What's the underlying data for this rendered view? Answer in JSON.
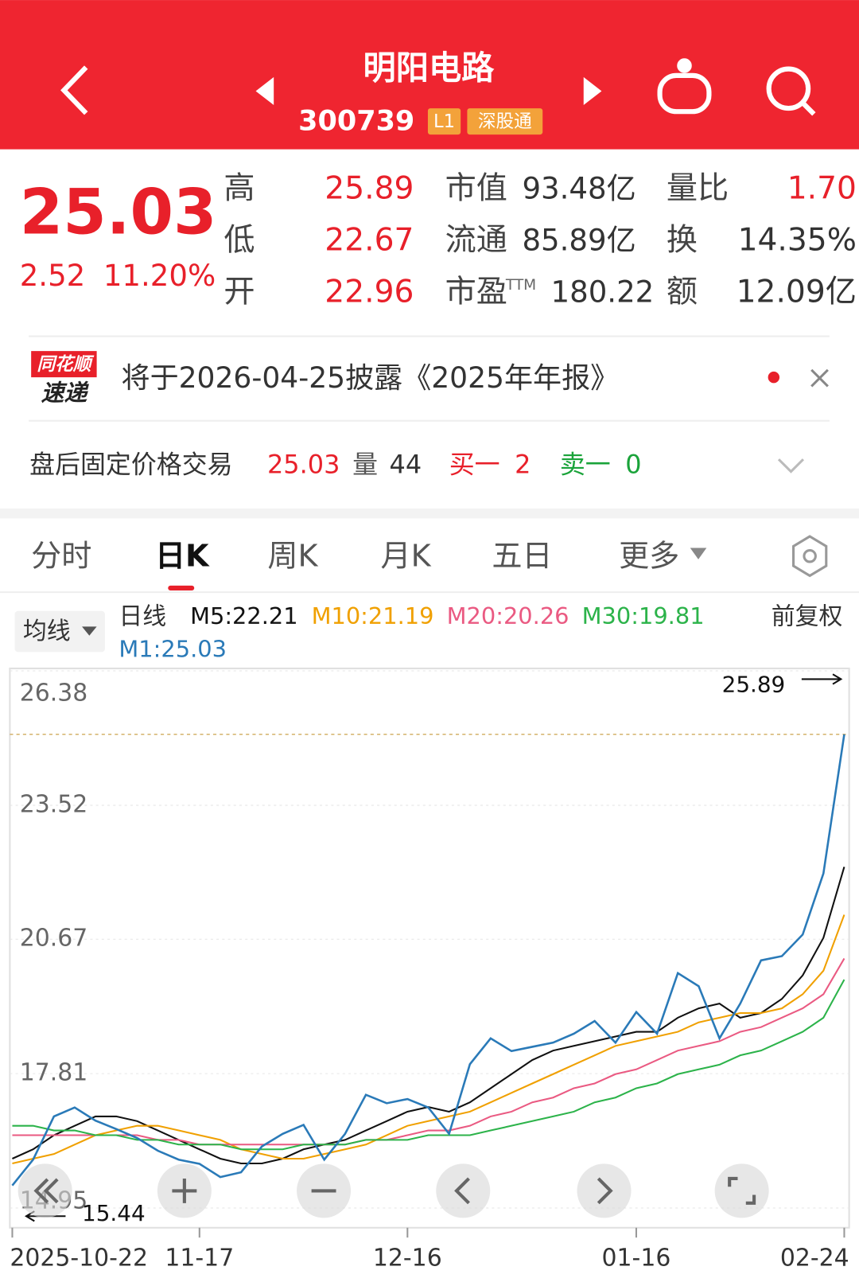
{
  "header": {
    "title": "明阳电路",
    "code": "300739",
    "badges": [
      "L1",
      "深股通"
    ]
  },
  "quote": {
    "price": "25.03",
    "change": "2.52",
    "change_pct": "11.20%",
    "stats": [
      [
        {
          "label": "高",
          "value": "25.89"
        },
        {
          "label": "市值",
          "value": "93.48亿"
        },
        {
          "label": "量比",
          "value": "1.70"
        }
      ],
      [
        {
          "label": "低",
          "value": "22.67"
        },
        {
          "label": "流通",
          "value": "85.89亿"
        },
        {
          "label": "换",
          "value": "14.35%"
        }
      ],
      [
        {
          "label": "开",
          "value": "22.96"
        },
        {
          "label": "市盈",
          "sup": "TTM",
          "value": "180.22"
        },
        {
          "label": "额",
          "value": "12.09亿"
        }
      ]
    ]
  },
  "notice": {
    "brand_top": "同花顺",
    "brand_bottom": "速递",
    "text": "将于2026-04-25披露《2025年年报》"
  },
  "after_hours": {
    "label": "盘后固定价格交易",
    "price": "25.03",
    "vol_label": "量",
    "vol": "44",
    "buy_label": "买一",
    "buy": "2",
    "sell_label": "卖一",
    "sell": "0"
  },
  "tabs": [
    "分时",
    "日K",
    "周K",
    "月K",
    "五日",
    "更多"
  ],
  "indicator": {
    "dropdown": "均线",
    "period": "日线",
    "adjust": "前复权"
  },
  "chart_data": {
    "type": "line",
    "categories": [
      "2025-10-22",
      null,
      null,
      null,
      null,
      null,
      null,
      null,
      null,
      "11-17",
      null,
      null,
      null,
      null,
      null,
      null,
      null,
      null,
      null,
      "12-16",
      null,
      null,
      null,
      null,
      null,
      null,
      null,
      null,
      null,
      null,
      "01-16",
      null,
      null,
      null,
      null,
      null,
      null,
      null,
      null,
      null,
      "02-24"
    ],
    "series": [
      {
        "name": "M5:22.21",
        "color": "#111111",
        "values": [
          16.0,
          16.2,
          16.5,
          16.7,
          16.9,
          16.9,
          16.8,
          16.6,
          16.4,
          16.2,
          16.0,
          15.9,
          15.9,
          16.0,
          16.2,
          16.3,
          16.4,
          16.6,
          16.8,
          17.0,
          17.1,
          17.0,
          17.2,
          17.5,
          17.8,
          18.1,
          18.3,
          18.4,
          18.5,
          18.6,
          18.7,
          18.7,
          19.0,
          19.2,
          19.3,
          19.0,
          19.1,
          19.4,
          19.9,
          20.7,
          22.21
        ]
      },
      {
        "name": "M10:21.19",
        "color": "#f0a000",
        "values": [
          15.9,
          16.0,
          16.1,
          16.3,
          16.5,
          16.6,
          16.7,
          16.7,
          16.6,
          16.5,
          16.4,
          16.2,
          16.1,
          16.0,
          16.0,
          16.1,
          16.2,
          16.3,
          16.5,
          16.7,
          16.8,
          16.9,
          17.0,
          17.2,
          17.4,
          17.6,
          17.8,
          18.0,
          18.2,
          18.4,
          18.5,
          18.6,
          18.7,
          18.9,
          19.0,
          19.1,
          19.1,
          19.2,
          19.5,
          20.0,
          21.19
        ]
      },
      {
        "name": "M20:20.26",
        "color": "#ea5a82",
        "values": [
          16.5,
          16.5,
          16.5,
          16.5,
          16.5,
          16.5,
          16.5,
          16.4,
          16.4,
          16.3,
          16.3,
          16.3,
          16.3,
          16.3,
          16.3,
          16.3,
          16.3,
          16.4,
          16.4,
          16.5,
          16.6,
          16.6,
          16.7,
          16.9,
          17.0,
          17.2,
          17.3,
          17.5,
          17.6,
          17.8,
          17.9,
          18.1,
          18.3,
          18.4,
          18.5,
          18.7,
          18.8,
          19.0,
          19.2,
          19.5,
          20.26
        ]
      },
      {
        "name": "M30:19.81",
        "color": "#2cb34a",
        "values": [
          16.7,
          16.7,
          16.6,
          16.6,
          16.5,
          16.5,
          16.4,
          16.4,
          16.3,
          16.3,
          16.3,
          16.2,
          16.2,
          16.2,
          16.3,
          16.3,
          16.3,
          16.4,
          16.4,
          16.4,
          16.5,
          16.5,
          16.5,
          16.6,
          16.7,
          16.8,
          16.9,
          17.0,
          17.2,
          17.3,
          17.5,
          17.6,
          17.8,
          17.9,
          18.0,
          18.2,
          18.3,
          18.5,
          18.7,
          19.0,
          19.81
        ]
      },
      {
        "name": "M1:25.03",
        "color": "#2a7ab8",
        "values": [
          15.43,
          15.98,
          16.9,
          17.09,
          16.81,
          16.63,
          16.44,
          16.17,
          15.98,
          15.89,
          15.61,
          15.71,
          16.26,
          16.53,
          16.72,
          15.98,
          16.53,
          17.36,
          17.18,
          17.27,
          17.09,
          16.53,
          18.01,
          18.56,
          18.29,
          18.38,
          18.47,
          18.66,
          18.93,
          18.47,
          19.12,
          18.66,
          19.95,
          19.67,
          18.56,
          19.3,
          20.22,
          20.31,
          20.77,
          22.07,
          25.03
        ]
      }
    ],
    "ylim": [
      14.95,
      26.38
    ],
    "yticks": [
      26.38,
      23.52,
      20.67,
      17.81,
      14.95
    ],
    "last_price": 25.03,
    "high_label": 25.89,
    "low_label": 15.44
  }
}
